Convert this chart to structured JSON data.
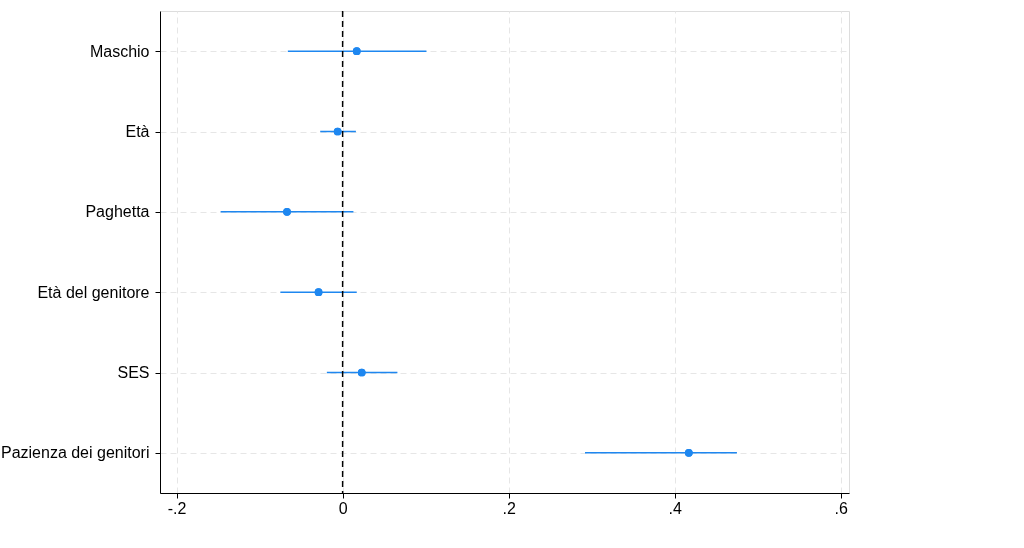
{
  "chart_data": {
    "type": "scatter",
    "orientation": "horizontal",
    "categories": [
      "Maschio",
      "Età",
      "Paghetta",
      "Età del genitore",
      "SES",
      "Pazienza dei genitori"
    ],
    "values": [
      0.017,
      -0.006,
      -0.067,
      -0.029,
      0.023,
      0.417
    ],
    "errors": [
      [
        -0.066,
        0.101
      ],
      [
        -0.027,
        0.016
      ],
      [
        -0.147,
        0.013
      ],
      [
        -0.075,
        0.017
      ],
      [
        -0.019,
        0.066
      ],
      [
        0.292,
        0.475
      ]
    ],
    "color": "#1e87f0",
    "marker": "circle",
    "grid": true,
    "xlim": [
      -0.22,
      0.61
    ],
    "xticks": [
      {
        "value": -0.2,
        "label": "-.2"
      },
      0,
      {
        "value": 0.2,
        "label": ".2"
      },
      {
        "value": 0.4,
        "label": ".4"
      },
      {
        "value": 0.6,
        "label": ".6"
      }
    ],
    "ref_lines": [
      {
        "axis": "x",
        "value": 0,
        "label": null,
        "color": "#000000",
        "line_style": "dashed"
      }
    ]
  }
}
